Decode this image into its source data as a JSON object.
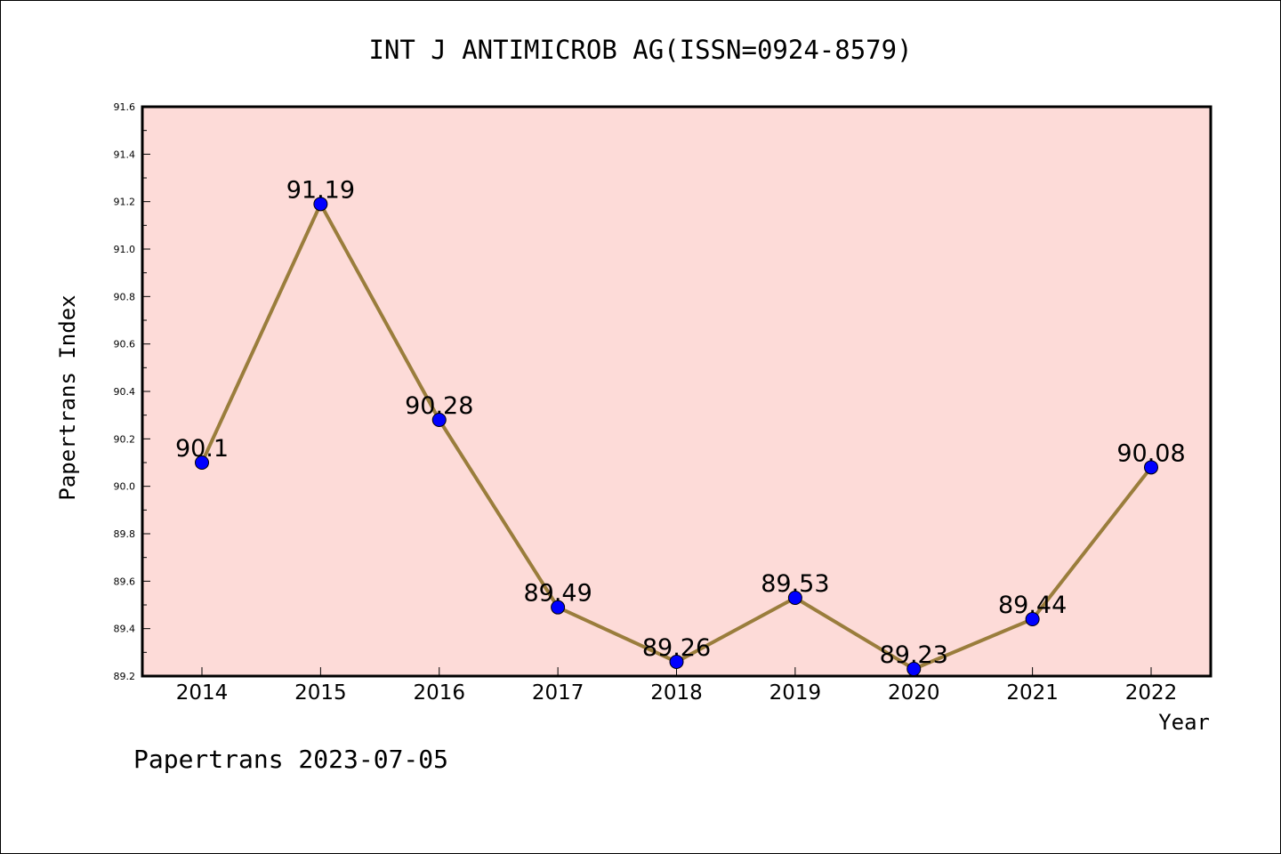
{
  "chart_data": {
    "type": "line",
    "title": "INT J ANTIMICROB AG(ISSN=0924-8579)",
    "xlabel": "Year",
    "ylabel": "Papertrans Index",
    "categories": [
      "2014",
      "2015",
      "2016",
      "2017",
      "2018",
      "2019",
      "2020",
      "2021",
      "2022"
    ],
    "series": [
      {
        "values": [
          90.1,
          91.19,
          90.28,
          89.49,
          89.26,
          89.53,
          89.23,
          89.44,
          90.08
        ],
        "data_labels": [
          "90.1",
          "91.19",
          "90.28",
          "89.49",
          "89.26",
          "89.53",
          "89.23",
          "89.44",
          "90.08"
        ]
      }
    ],
    "ylim": [
      89.2,
      91.6
    ],
    "yticks": [
      "89.2",
      "89.4",
      "89.6",
      "89.8",
      "90.0",
      "90.2",
      "90.4",
      "90.6",
      "90.8",
      "91.0",
      "91.2",
      "91.4",
      "91.6"
    ],
    "grid": false,
    "footer": "Papertrans 2023-07-05",
    "colors": {
      "plot_background": "#fddbd8",
      "line": "#9a7d3c",
      "marker": "#0000ff"
    }
  }
}
